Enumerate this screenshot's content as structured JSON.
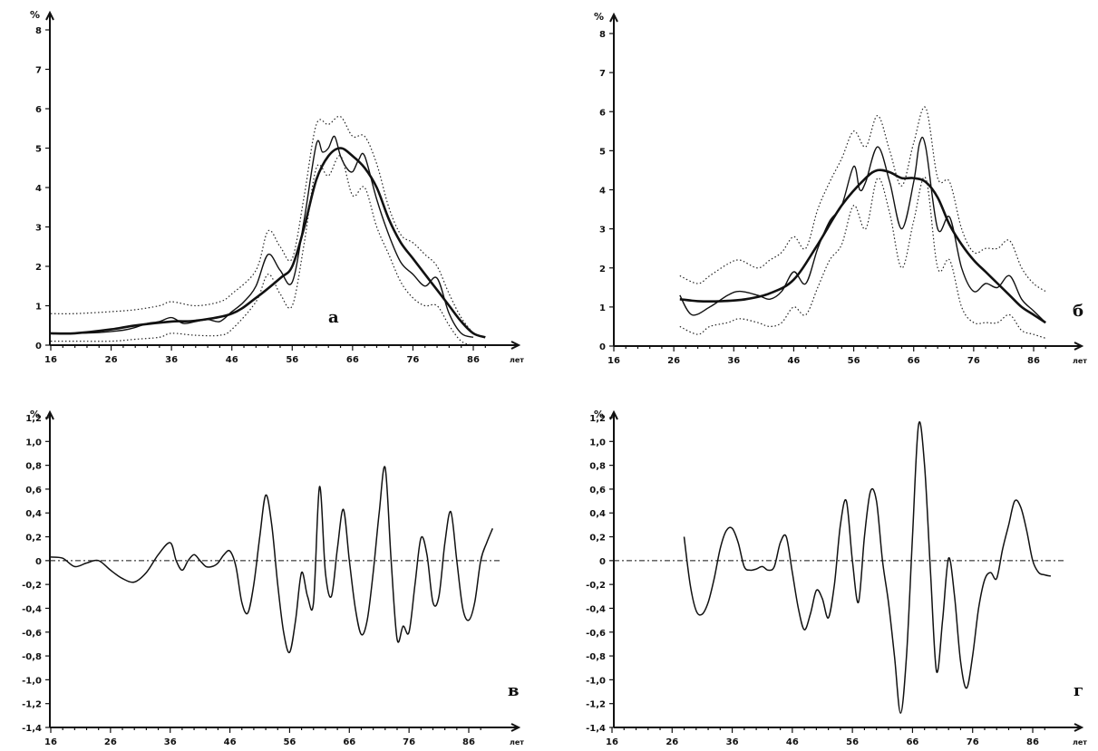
{
  "chart_data": [
    {
      "id": "a",
      "type": "line",
      "panel_label": "а",
      "ylabel": "%",
      "xlabel": "лет",
      "ylim": [
        0,
        8.5
      ],
      "yticks": [
        0,
        1,
        2,
        3,
        4,
        5,
        6,
        7,
        8
      ],
      "yticklabels": [
        "0",
        "1",
        "2",
        "3",
        "4",
        "5",
        "6",
        "7",
        "8"
      ],
      "xlim": [
        15,
        91
      ],
      "xticks": [
        16,
        26,
        36,
        46,
        56,
        66,
        76,
        86
      ],
      "xticklabels": [
        "16",
        "26",
        "36",
        "46",
        "56",
        "66",
        "76",
        "86"
      ],
      "series": [
        {
          "style": "raw",
          "x": [
            16,
            20,
            24,
            28,
            30,
            32,
            34,
            36,
            38,
            40,
            42,
            44,
            46,
            48,
            50,
            52,
            54,
            56,
            58,
            60,
            61,
            62,
            63,
            64,
            65,
            66,
            67,
            68,
            70,
            72,
            74,
            76,
            78,
            80,
            82,
            84,
            86
          ],
          "y": [
            0.3,
            0.3,
            0.32,
            0.38,
            0.45,
            0.55,
            0.6,
            0.7,
            0.55,
            0.6,
            0.65,
            0.6,
            0.85,
            1.1,
            1.5,
            2.3,
            1.9,
            1.6,
            3.2,
            5.1,
            4.9,
            5.0,
            5.3,
            4.8,
            4.5,
            4.4,
            4.7,
            4.8,
            3.7,
            2.8,
            2.1,
            1.8,
            1.5,
            1.7,
            0.8,
            0.3,
            0.2
          ]
        },
        {
          "style": "smooth",
          "x": [
            16,
            20,
            26,
            30,
            36,
            40,
            46,
            50,
            54,
            56,
            58,
            60,
            62,
            64,
            66,
            68,
            70,
            72,
            74,
            76,
            78,
            80,
            82,
            84,
            86,
            88
          ],
          "y": [
            0.3,
            0.3,
            0.4,
            0.5,
            0.6,
            0.62,
            0.8,
            1.2,
            1.7,
            2.0,
            3.0,
            4.2,
            4.8,
            5.0,
            4.8,
            4.5,
            4.0,
            3.2,
            2.6,
            2.2,
            1.8,
            1.4,
            1.0,
            0.6,
            0.3,
            0.2
          ]
        },
        {
          "style": "dotted",
          "x": [
            16,
            20,
            26,
            30,
            34,
            36,
            40,
            44,
            46,
            50,
            52,
            54,
            56,
            58,
            60,
            62,
            64,
            66,
            68,
            70,
            72,
            74,
            76,
            78,
            80,
            82,
            84,
            86
          ],
          "y": [
            0.8,
            0.8,
            0.85,
            0.9,
            1.0,
            1.1,
            1.0,
            1.1,
            1.3,
            1.9,
            2.9,
            2.5,
            2.2,
            3.8,
            5.6,
            5.6,
            5.8,
            5.3,
            5.3,
            4.6,
            3.5,
            2.8,
            2.6,
            2.3,
            2.0,
            1.3,
            0.7,
            0.3
          ]
        },
        {
          "style": "dotted",
          "x": [
            16,
            20,
            26,
            30,
            34,
            36,
            40,
            44,
            46,
            50,
            52,
            54,
            56,
            58,
            60,
            62,
            64,
            66,
            68,
            70,
            72,
            74,
            76,
            78,
            80,
            82,
            84,
            86
          ],
          "y": [
            0.1,
            0.1,
            0.1,
            0.15,
            0.2,
            0.3,
            0.25,
            0.25,
            0.4,
            1.1,
            1.8,
            1.3,
            1.0,
            2.6,
            4.5,
            4.3,
            4.8,
            3.8,
            4.0,
            3.0,
            2.3,
            1.6,
            1.2,
            1.0,
            1.0,
            0.5,
            0.1,
            0.0
          ]
        }
      ]
    },
    {
      "id": "b",
      "type": "line",
      "panel_label": "б",
      "ylabel": "%",
      "xlabel": "лет",
      "ylim": [
        0,
        8.5
      ],
      "yticks": [
        0,
        1,
        2,
        3,
        4,
        5,
        6,
        7,
        8
      ],
      "yticklabels": [
        "0",
        "1",
        "2",
        "3",
        "4",
        "5",
        "6",
        "7",
        "8"
      ],
      "xlim": [
        15,
        91
      ],
      "xticks": [
        16,
        26,
        36,
        46,
        56,
        66,
        76,
        86
      ],
      "xticklabels": [
        "16",
        "26",
        "36",
        "46",
        "56",
        "66",
        "76",
        "86"
      ],
      "series": [
        {
          "style": "raw",
          "x": [
            27,
            29,
            32,
            35,
            37,
            40,
            42,
            44,
            46,
            48,
            50,
            52,
            54,
            56,
            57,
            58,
            60,
            62,
            64,
            66,
            67,
            68,
            70,
            72,
            74,
            76,
            78,
            80,
            82,
            84,
            86,
            88
          ],
          "y": [
            1.3,
            0.8,
            1.0,
            1.3,
            1.4,
            1.3,
            1.2,
            1.4,
            1.9,
            1.6,
            2.5,
            3.2,
            3.6,
            4.6,
            4.0,
            4.2,
            5.1,
            4.2,
            3.0,
            4.2,
            5.2,
            5.1,
            3.0,
            3.3,
            2.0,
            1.4,
            1.6,
            1.5,
            1.8,
            1.2,
            0.9,
            0.6
          ]
        },
        {
          "style": "smooth",
          "x": [
            27,
            30,
            34,
            38,
            42,
            46,
            50,
            54,
            58,
            60,
            62,
            64,
            66,
            68,
            70,
            72,
            74,
            76,
            78,
            80,
            82,
            84,
            86,
            88
          ],
          "y": [
            1.2,
            1.15,
            1.15,
            1.2,
            1.35,
            1.7,
            2.6,
            3.6,
            4.3,
            4.5,
            4.45,
            4.3,
            4.3,
            4.2,
            3.8,
            3.1,
            2.6,
            2.2,
            1.9,
            1.6,
            1.3,
            1.0,
            0.8,
            0.6
          ]
        },
        {
          "style": "dotted",
          "x": [
            27,
            30,
            32,
            35,
            37,
            40,
            42,
            44,
            46,
            48,
            50,
            52,
            54,
            56,
            58,
            60,
            62,
            64,
            66,
            68,
            70,
            72,
            74,
            76,
            78,
            80,
            82,
            84,
            86,
            88
          ],
          "y": [
            1.8,
            1.6,
            1.8,
            2.1,
            2.2,
            2.0,
            2.2,
            2.4,
            2.8,
            2.5,
            3.5,
            4.2,
            4.8,
            5.5,
            5.1,
            5.9,
            5.0,
            4.1,
            5.2,
            6.1,
            4.3,
            4.2,
            3.0,
            2.4,
            2.5,
            2.5,
            2.7,
            2.0,
            1.6,
            1.4
          ]
        },
        {
          "style": "dotted",
          "x": [
            27,
            30,
            32,
            35,
            37,
            40,
            42,
            44,
            46,
            48,
            50,
            52,
            54,
            56,
            58,
            60,
            62,
            64,
            66,
            68,
            70,
            72,
            74,
            76,
            78,
            80,
            82,
            84,
            86,
            88
          ],
          "y": [
            0.5,
            0.3,
            0.5,
            0.6,
            0.7,
            0.6,
            0.5,
            0.6,
            1.0,
            0.8,
            1.5,
            2.2,
            2.6,
            3.6,
            3.0,
            4.3,
            3.4,
            2.0,
            3.2,
            4.3,
            2.0,
            2.2,
            1.0,
            0.6,
            0.6,
            0.6,
            0.8,
            0.4,
            0.3,
            0.2
          ]
        }
      ]
    },
    {
      "id": "v",
      "type": "line",
      "panel_label": "в",
      "ylabel": "%",
      "xlabel": "лет",
      "ylim": [
        -1.4,
        1.4
      ],
      "yticks": [
        -1.4,
        -1.2,
        -1.0,
        -0.8,
        -0.6,
        -0.4,
        -0.2,
        0,
        0.2,
        0.4,
        0.6,
        0.8,
        1.0,
        1.2
      ],
      "yticklabels": [
        "-1,4",
        "-1,2",
        "-1,0",
        "-0,8",
        "-0,6",
        "-0,4",
        "-0,2",
        "0",
        "0,2",
        "0,4",
        "0,6",
        "0,8",
        "1,0",
        "1,2"
      ],
      "xlim": [
        15,
        91
      ],
      "xticks": [
        16,
        26,
        36,
        46,
        56,
        66,
        76,
        86
      ],
      "xticklabels": [
        "16",
        "26",
        "36",
        "46",
        "56",
        "66",
        "76",
        "86"
      ],
      "series": [
        {
          "style": "resid",
          "x": [
            16,
            18,
            20,
            22,
            24,
            26,
            28,
            30,
            32,
            34,
            36,
            37,
            38,
            39,
            40,
            41,
            42,
            43,
            44,
            45,
            46,
            47,
            48,
            49,
            50,
            51,
            52,
            53,
            54,
            55,
            56,
            57,
            58,
            59,
            60,
            61,
            62,
            63,
            64,
            65,
            66,
            67,
            68,
            69,
            70,
            71,
            72,
            73,
            74,
            75,
            76,
            77,
            78,
            79,
            80,
            81,
            82,
            83,
            84,
            85,
            86,
            87,
            88,
            89,
            90
          ],
          "y": [
            0.03,
            0.02,
            -0.05,
            -0.02,
            0.0,
            -0.08,
            -0.15,
            -0.18,
            -0.1,
            0.05,
            0.15,
            0.0,
            -0.08,
            0.0,
            0.05,
            0.0,
            -0.05,
            -0.05,
            -0.02,
            0.05,
            0.08,
            -0.05,
            -0.35,
            -0.44,
            -0.2,
            0.2,
            0.55,
            0.3,
            -0.2,
            -0.6,
            -0.77,
            -0.5,
            -0.1,
            -0.3,
            -0.35,
            0.62,
            -0.1,
            -0.3,
            0.1,
            0.43,
            0.0,
            -0.4,
            -0.62,
            -0.5,
            -0.1,
            0.4,
            0.78,
            0.0,
            -0.66,
            -0.55,
            -0.6,
            -0.2,
            0.19,
            0.05,
            -0.35,
            -0.3,
            0.15,
            0.41,
            0.0,
            -0.4,
            -0.5,
            -0.35,
            0.0,
            0.15,
            0.27
          ]
        }
      ]
    },
    {
      "id": "g",
      "type": "line",
      "panel_label": "г",
      "ylabel": "%",
      "xlabel": "лет",
      "ylim": [
        -1.4,
        1.4
      ],
      "yticks": [
        -1.4,
        -1.2,
        -1.0,
        -0.8,
        -0.6,
        -0.4,
        -0.2,
        0,
        0.2,
        0.4,
        0.6,
        0.8,
        1.0,
        1.2
      ],
      "yticklabels": [
        "-1,4",
        "-1,2",
        "-1,0",
        "-0,8",
        "-0,6",
        "-0,4",
        "-0,2",
        "0",
        "0,2",
        "0,4",
        "0,6",
        "0,8",
        "1,0",
        "1,2"
      ],
      "xlim": [
        15,
        91
      ],
      "xticks": [
        16,
        26,
        36,
        46,
        56,
        66,
        76,
        86
      ],
      "xticklabels": [
        "16",
        "26",
        "36",
        "46",
        "56",
        "66",
        "76",
        "86"
      ],
      "series": [
        {
          "style": "resid",
          "x": [
            28,
            29,
            30,
            31,
            32,
            33,
            34,
            35,
            36,
            37,
            38,
            39,
            40,
            41,
            42,
            43,
            44,
            45,
            46,
            47,
            48,
            49,
            50,
            51,
            52,
            53,
            54,
            55,
            56,
            57,
            58,
            59,
            60,
            61,
            62,
            63,
            64,
            65,
            66,
            67,
            68,
            69,
            70,
            71,
            72,
            73,
            74,
            75,
            76,
            77,
            78,
            79,
            80,
            81,
            82,
            83,
            84,
            85,
            86,
            87,
            88,
            89
          ],
          "y": [
            0.2,
            -0.2,
            -0.42,
            -0.45,
            -0.35,
            -0.15,
            0.1,
            0.25,
            0.27,
            0.15,
            -0.05,
            -0.08,
            -0.07,
            -0.05,
            -0.08,
            -0.05,
            0.15,
            0.2,
            -0.1,
            -0.4,
            -0.58,
            -0.45,
            -0.25,
            -0.32,
            -0.48,
            -0.2,
            0.3,
            0.5,
            0.0,
            -0.35,
            0.2,
            0.58,
            0.5,
            0.0,
            -0.35,
            -0.8,
            -1.28,
            -0.8,
            0.2,
            1.14,
            0.8,
            -0.1,
            -0.93,
            -0.5,
            0.02,
            -0.3,
            -0.85,
            -1.07,
            -0.8,
            -0.4,
            -0.16,
            -0.1,
            -0.15,
            0.1,
            0.3,
            0.5,
            0.45,
            0.25,
            0.0,
            -0.1,
            -0.12,
            -0.13
          ]
        }
      ]
    }
  ]
}
